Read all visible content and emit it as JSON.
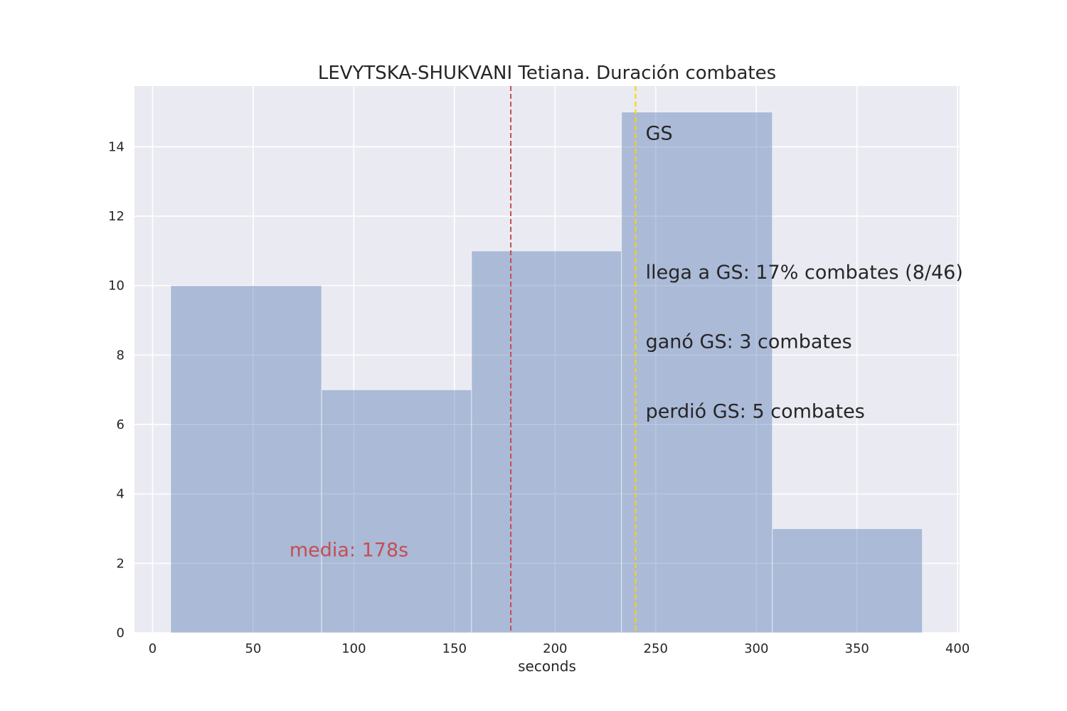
{
  "chart_data": {
    "type": "bar",
    "title": "LEVYTSKA-SHUKVANI Tetiana. Duración combates",
    "xlabel": "seconds",
    "ylabel": "",
    "xlim": [
      -9,
      401
    ],
    "ylim": [
      0,
      15.75
    ],
    "xticks": [
      0,
      50,
      100,
      150,
      200,
      250,
      300,
      350,
      400
    ],
    "yticks": [
      0,
      2,
      4,
      6,
      8,
      10,
      12,
      14
    ],
    "bins": [
      {
        "start": 9,
        "end": 84,
        "count": 10
      },
      {
        "start": 84,
        "end": 158.5,
        "count": 7
      },
      {
        "start": 158.5,
        "end": 233,
        "count": 11
      },
      {
        "start": 233,
        "end": 308,
        "count": 15
      },
      {
        "start": 308,
        "end": 382.5,
        "count": 3
      }
    ],
    "bar_color": "#4c72b0",
    "grid": true,
    "background_color": "#eaeaf2",
    "mean_line": {
      "x": 178,
      "color": "#c44e52",
      "label": "media: 178s",
      "label_x": 68,
      "label_y": 2.2
    },
    "gs_line": {
      "x": 240,
      "color": "#ffd400"
    },
    "annotations": [
      {
        "text": "GS",
        "x": 245,
        "y": 14.2
      },
      {
        "text": "llega a GS: 17% combates (8/46)",
        "x": 245,
        "y": 10.2
      },
      {
        "text": "ganó GS: 3 combates",
        "x": 245,
        "y": 8.2
      },
      {
        "text": "perdió GS: 5 combates",
        "x": 245,
        "y": 6.2
      }
    ]
  }
}
